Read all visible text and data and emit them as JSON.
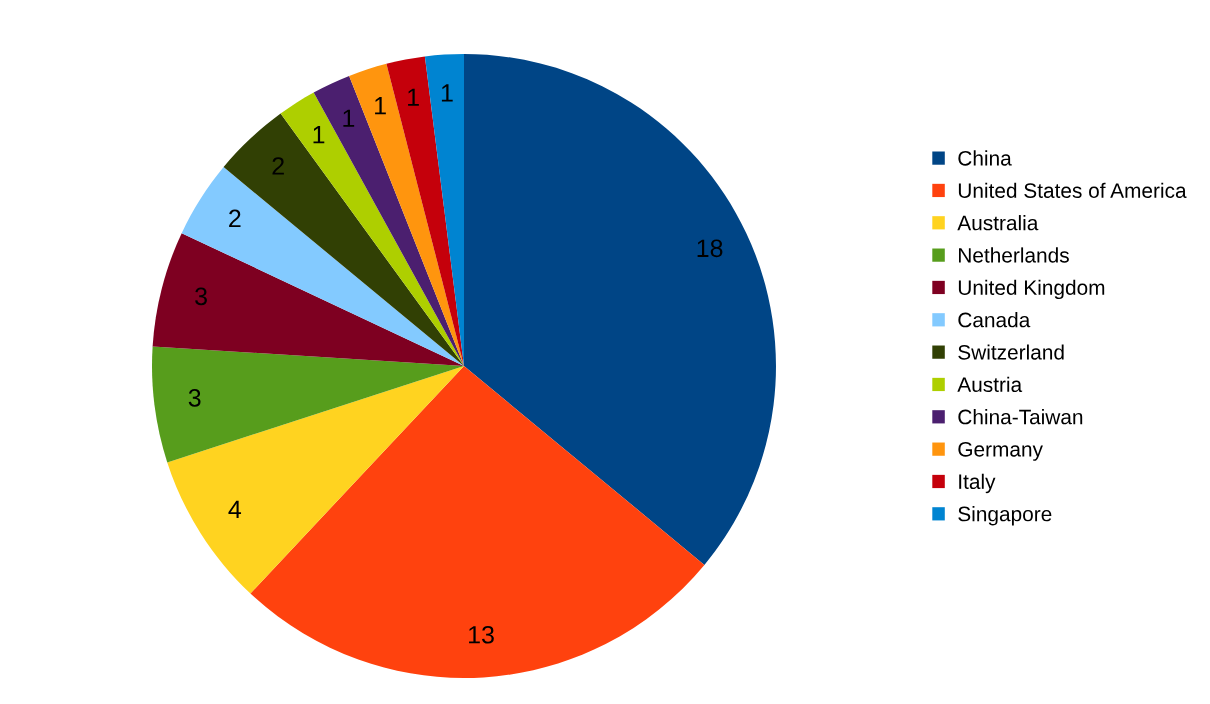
{
  "chart_data": {
    "type": "pie",
    "categories": [
      "China",
      "United States of America",
      "Australia",
      "Netherlands",
      "United Kingdom",
      "Canada",
      "Switzerland",
      "Austria",
      "China-Taiwan",
      "Germany",
      "Italy",
      "Singapore"
    ],
    "values": [
      18,
      13,
      4,
      3,
      3,
      2,
      2,
      1,
      1,
      1,
      1,
      1
    ],
    "colors": [
      "#004586",
      "#ff420e",
      "#ffd320",
      "#579d1c",
      "#7e0021",
      "#83caff",
      "#314004",
      "#aecf00",
      "#4b1f6f",
      "#ff950e",
      "#c5000b",
      "#0084d1"
    ],
    "data_labels": true,
    "legend": "right"
  }
}
